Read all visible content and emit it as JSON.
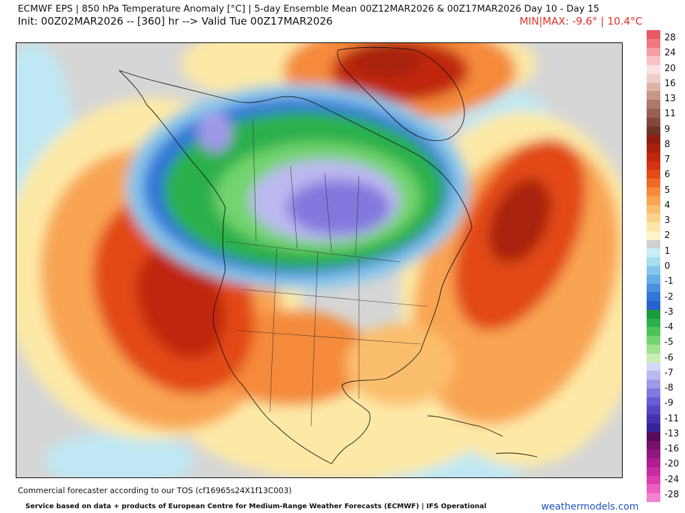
{
  "header": {
    "title": "ECMWF EPS | 850 hPa Temperature Anomaly [°C] | 5-day Ensemble Mean 00Z12MAR2026 & 00Z17MAR2026   Day 10 - Day 15",
    "init_line": "Init: 00Z02MAR2026 -- [360] hr --> Valid Tue 00Z17MAR2026",
    "minmax": "MIN|MAX: -9.6° | 10.4°C",
    "minmax_color": "#e0302a"
  },
  "map": {
    "region": "North America",
    "variable": "850 hPa Temperature Anomaly",
    "units": "°C",
    "min_value": -9.6,
    "max_value": 10.4
  },
  "colorbar": {
    "labels": [
      "28",
      "24",
      "20",
      "16",
      "13",
      "11",
      "9",
      "8",
      "7",
      "6",
      "5",
      "4",
      "3",
      "2",
      "1",
      "0",
      "-1",
      "-2",
      "-3",
      "-4",
      "-5",
      "-6",
      "-7",
      "-8",
      "-9",
      "-11",
      "-13",
      "-16",
      "-20",
      "-24",
      "-28"
    ],
    "colors": [
      "#e65a64",
      "#ee7a80",
      "#f3a0a4",
      "#f7c4c6",
      "#fae0e0",
      "#eecec8",
      "#dfb4a8",
      "#c89686",
      "#b07868",
      "#9a6050",
      "#84483a",
      "#6e3426",
      "#8e1e12",
      "#a8200e",
      "#c0280e",
      "#d23412",
      "#e24a18",
      "#ef6a26",
      "#f58a3a",
      "#f9a452",
      "#fbbe6c",
      "#fdd28a",
      "#fee6aa",
      "#fff3c8",
      "#d0d0d0",
      "#c8eef6",
      "#a8ddf0",
      "#86c6ea",
      "#66aee6",
      "#4a92e0",
      "#3276d8",
      "#2a62cc",
      "#1c9a3c",
      "#2cb04c",
      "#4cc454",
      "#72d46e",
      "#a0e28e",
      "#c8eeb4",
      "#d6d6f8",
      "#bcb8f0",
      "#a098e8",
      "#8278de",
      "#6a5cd4",
      "#5646c4",
      "#4432b0",
      "#38229a",
      "#5a0a58",
      "#76106e",
      "#921880",
      "#b01c92",
      "#c82ca2",
      "#dc40b0",
      "#ec60c2",
      "#f482d2"
    ]
  },
  "footer": {
    "tos": "Commercial forecaster according to our TOS (cf16965s24X1f13C003)",
    "service": "Service based on data + products of European Centre for Medium-Range Weather Forecasts (ECMWF) | IFS Operational",
    "brand": "weathermodels.com",
    "brand_color": "#2154c8"
  }
}
